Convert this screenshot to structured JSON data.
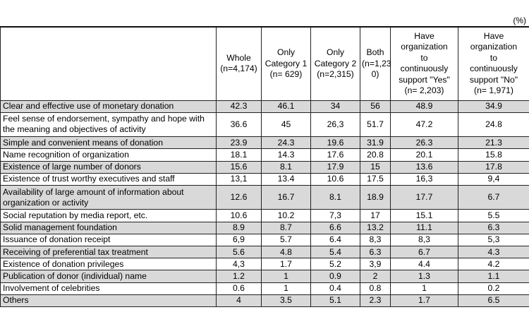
{
  "unit_label": "(%)",
  "columns": [
    "",
    "Whole\n(n=4,174)",
    "Only\nCategory 1\n(n= 629)",
    "Only\nCategory 2\n(n=2,315)",
    "Both\n(n=1,23\n0)",
    "Have\norganization\nto\ncontinuously\nsupport \"Yes\"\n(n= 2,203)",
    "Have\norganization\nto\ncontinuously\nsupport \"No\"\n(n= 1,971)"
  ],
  "rows": [
    {
      "label": "Clear and effective use of monetary donation",
      "values": [
        "42.3",
        "46.1",
        "34",
        "56",
        "48.9",
        "34.9"
      ]
    },
    {
      "label": "Feel sense of endorsement, sympathy and hope with the meaning and objectives of activity",
      "values": [
        "36.6",
        "45",
        "26,3",
        "51.7",
        "47.2",
        "24.8"
      ]
    },
    {
      "label": "Simple and convenient means of donation",
      "values": [
        "23.9",
        "24.3",
        "19.6",
        "31.9",
        "26.3",
        "21.3"
      ]
    },
    {
      "label": "Name recognition of organization",
      "values": [
        "18.1",
        "14.3",
        "17.6",
        "20.8",
        "20.1",
        "15.8"
      ]
    },
    {
      "label": "Existence of large number of donors",
      "values": [
        "15.6",
        "8.1",
        "17.9",
        "15",
        "13.6",
        "17.8"
      ]
    },
    {
      "label": "Existence of trust worthy executives and staff",
      "values": [
        "13,1",
        "13.4",
        "10.6",
        "17.5",
        "16,3",
        "9,4"
      ]
    },
    {
      "label": "Availability of large amount of information about organization or activity",
      "values": [
        "12.6",
        "16.7",
        "8.1",
        "18.9",
        "17.7",
        "6.7"
      ]
    },
    {
      "label": "Social reputation by media report, etc.",
      "values": [
        "10.6",
        "10.2",
        "7,3",
        "17",
        "15.1",
        "5.5"
      ]
    },
    {
      "label": "Solid management foundation",
      "values": [
        "8.9",
        "8.7",
        "6.6",
        "13.2",
        "11.1",
        "6.3"
      ]
    },
    {
      "label": "Issuance of donation receipt",
      "values": [
        "6,9",
        "5.7",
        "6.4",
        "8,3",
        "8,3",
        "5,3"
      ]
    },
    {
      "label": "Receiving of preferential tax treatment",
      "values": [
        "5.6",
        "4.8",
        "5.4",
        "6.3",
        "6.7",
        "4.3"
      ]
    },
    {
      "label": "Existence of donation privileges",
      "values": [
        "4,3",
        "1.7",
        "5.2",
        "3,9",
        "4.4",
        "4.2"
      ]
    },
    {
      "label": "Publication of donor (individual) name",
      "values": [
        "1.2",
        "1",
        "0.9",
        "2",
        "1.3",
        "1.1"
      ]
    },
    {
      "label": "Involvement of celebrities",
      "values": [
        "0.6",
        "1",
        "0.4",
        "0.8",
        "1",
        "0.2"
      ]
    },
    {
      "label": "Others",
      "values": [
        "4",
        "3.5",
        "5.1",
        "2.3",
        "1.7",
        "6.5"
      ]
    }
  ]
}
